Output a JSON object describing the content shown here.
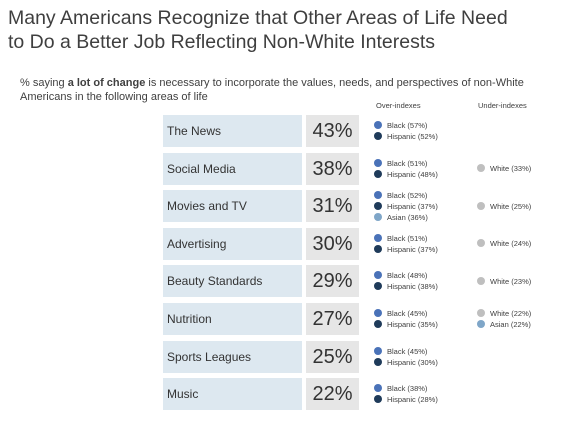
{
  "header": {
    "title_lines": [
      "Many Americans Recognize that Other Areas of Life Need",
      "to Do a Better Job Reflecting Non-White Interests"
    ],
    "subtitle": {
      "before": "% saying ",
      "bold": "a lot of change",
      "after": " is necessary to incorporate the values, needs, and perspectives of non-White Americans in the following areas of life"
    }
  },
  "columns": {
    "over": "Over-indexes",
    "under": "Under-indexes"
  },
  "rows": [
    {
      "label": "The News",
      "value": "43%",
      "over": [
        {
          "text": "Black (57%)",
          "color": "#4a72b8"
        },
        {
          "text": "Hispanic (52%)",
          "color": "#1f3b5a"
        }
      ],
      "under": []
    },
    {
      "label": "Social Media",
      "value": "38%",
      "over": [
        {
          "text": "Black (51%)",
          "color": "#4a72b8"
        },
        {
          "text": "Hispanic (48%)",
          "color": "#1f3b5a"
        }
      ],
      "under": [
        {
          "text": "White (33%)",
          "color": "#bfbfbf"
        }
      ]
    },
    {
      "label": "Movies and TV",
      "value": "31%",
      "over": [
        {
          "text": "Black (52%)",
          "color": "#4a72b8"
        },
        {
          "text": "Hispanic (37%)",
          "color": "#1f3b5a"
        },
        {
          "text": "Asian (36%)",
          "color": "#7fa6c8"
        }
      ],
      "under": [
        {
          "text": "White (25%)",
          "color": "#bfbfbf"
        }
      ]
    },
    {
      "label": "Advertising",
      "value": "30%",
      "over": [
        {
          "text": "Black (51%)",
          "color": "#4a72b8"
        },
        {
          "text": "Hispanic (37%)",
          "color": "#1f3b5a"
        }
      ],
      "under": [
        {
          "text": "White (24%)",
          "color": "#bfbfbf"
        }
      ]
    },
    {
      "label": "Beauty Standards",
      "value": "29%",
      "over": [
        {
          "text": "Black (48%)",
          "color": "#4a72b8"
        },
        {
          "text": "Hispanic (38%)",
          "color": "#1f3b5a"
        }
      ],
      "under": [
        {
          "text": "White (23%)",
          "color": "#bfbfbf"
        }
      ]
    },
    {
      "label": "Nutrition",
      "value": "27%",
      "over": [
        {
          "text": "Black (45%)",
          "color": "#4a72b8"
        },
        {
          "text": "Hispanic (35%)",
          "color": "#1f3b5a"
        }
      ],
      "under": [
        {
          "text": "White (22%)",
          "color": "#bfbfbf"
        },
        {
          "text": "Asian (22%)",
          "color": "#7fa6c8"
        }
      ]
    },
    {
      "label": "Sports Leagues",
      "value": "25%",
      "over": [
        {
          "text": "Black (45%)",
          "color": "#4a72b8"
        },
        {
          "text": "Hispanic (30%)",
          "color": "#1f3b5a"
        }
      ],
      "under": []
    },
    {
      "label": "Music",
      "value": "22%",
      "over": [
        {
          "text": "Black (38%)",
          "color": "#4a72b8"
        },
        {
          "text": "Hispanic (28%)",
          "color": "#1f3b5a"
        }
      ],
      "under": []
    }
  ]
}
